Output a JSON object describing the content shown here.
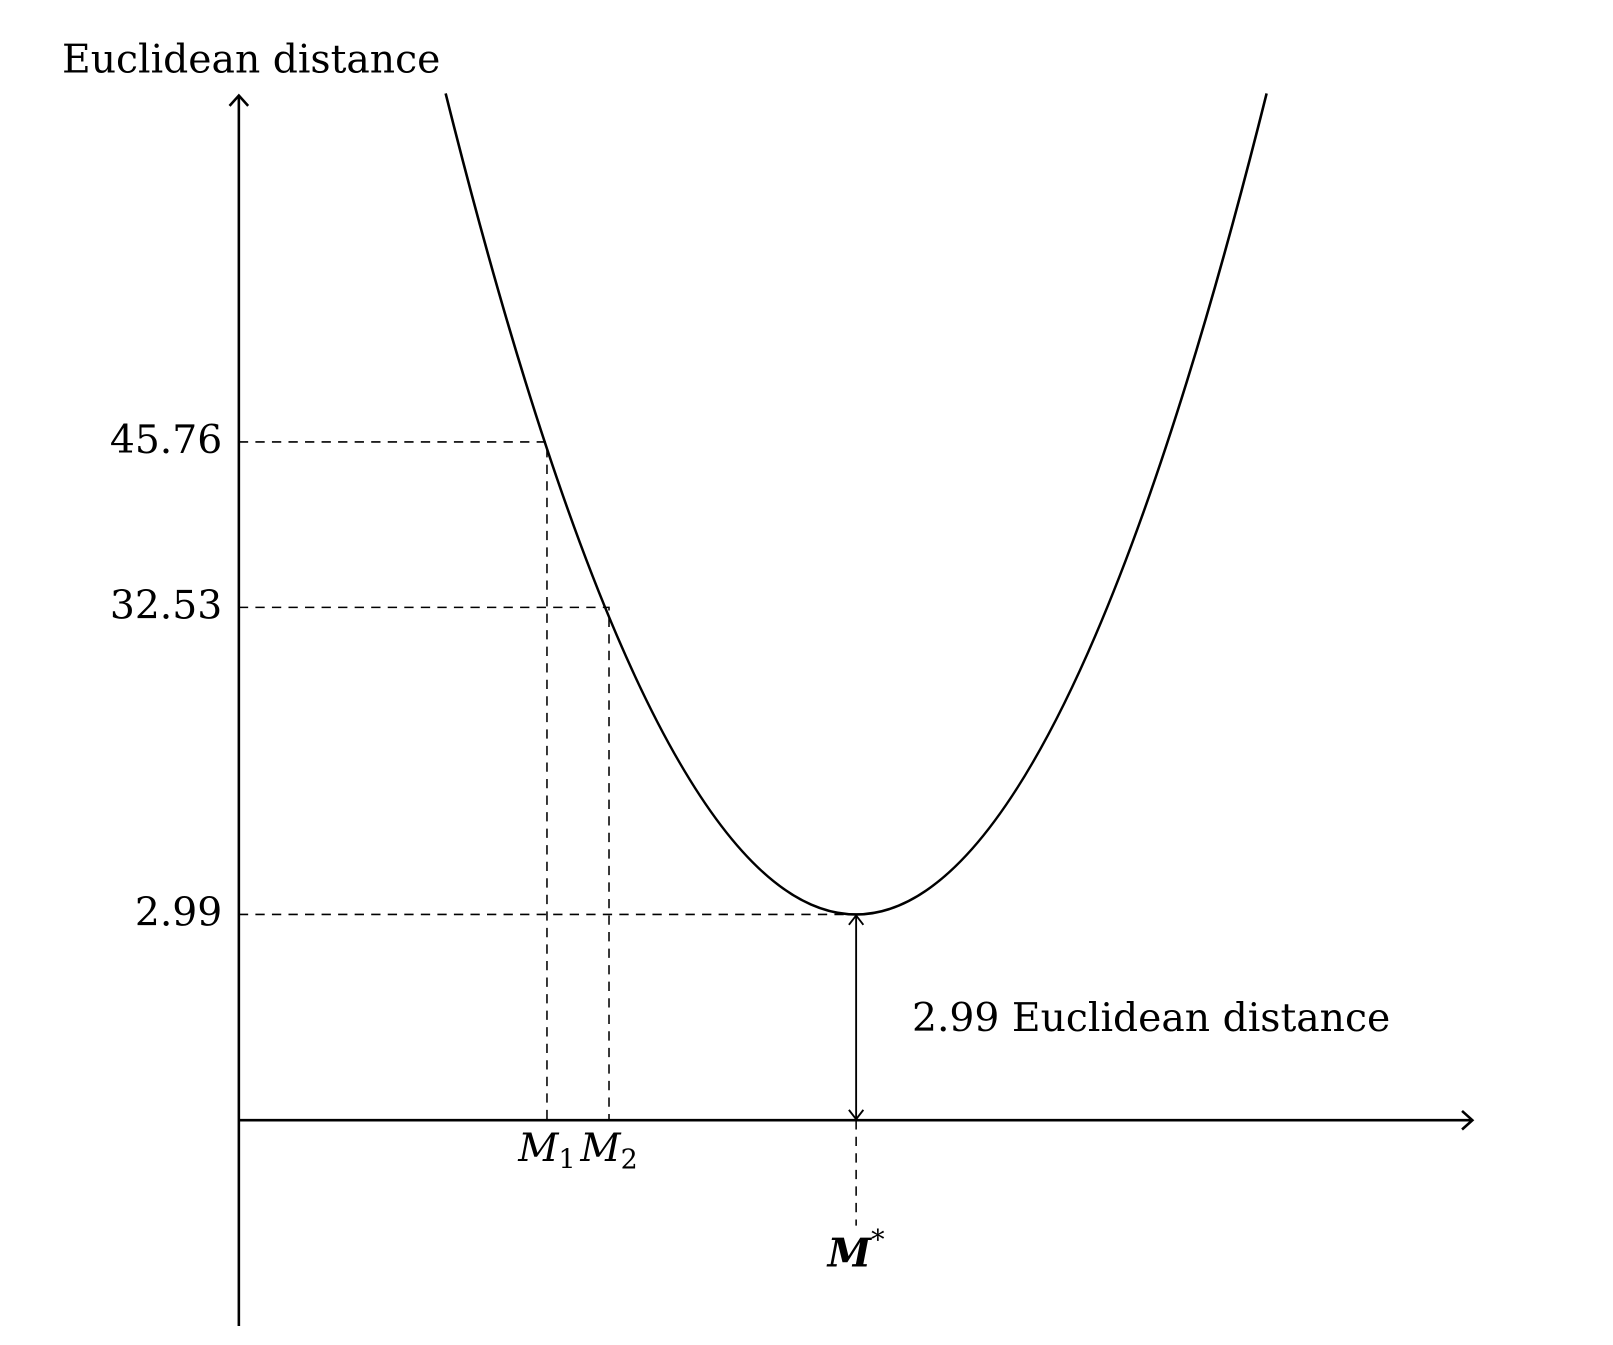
{
  "y_axis_label": "Euclidean distance",
  "y_labels": [
    "45.76",
    "32.53",
    "2.99"
  ],
  "x_labels": [
    {
      "base": "M",
      "sub": "1"
    },
    {
      "base": "M",
      "sub": "2"
    }
  ],
  "optimum_label": {
    "base": "M",
    "sup": "*"
  },
  "annotation": "2.99 Euclidean distance"
}
